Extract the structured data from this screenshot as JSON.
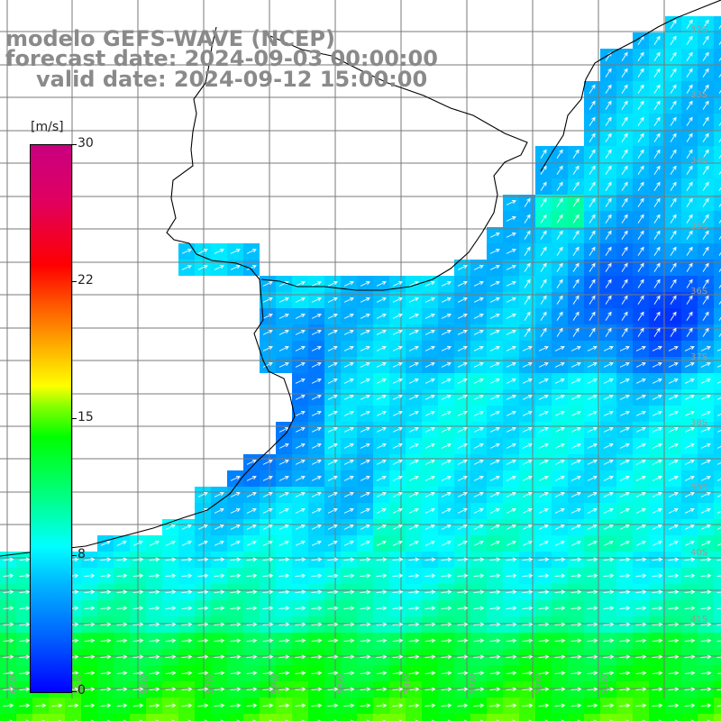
{
  "header": {
    "line1": "modelo GEFS-WAVE (NCEP)",
    "line2": "forecast date: 2024-09-03 00:00:00",
    "line3": "valid date: 2024-09-12 15:00:00"
  },
  "colorbar": {
    "unit": "[m/s]",
    "min": 0,
    "max": 30,
    "ticks": [
      "30",
      "22",
      "15",
      "8",
      "0"
    ],
    "tick_values": [
      30,
      22,
      15,
      8,
      0
    ]
  },
  "map": {
    "parameter_field": "wind speed",
    "lat_labels_right": [
      "32S",
      "33S",
      "34S",
      "35S",
      "36S",
      "37S",
      "38S",
      "39S",
      "40S",
      "41S"
    ],
    "lon_labels_bottom": [
      "60W",
      "59W",
      "58W",
      "57W",
      "56W",
      "55W",
      "54W",
      "53W",
      "52W",
      "51W"
    ],
    "colors": {
      "land": "#ffffff",
      "grid": "#7a7a7a",
      "coast": "#000000",
      "arrows": "#ffffff"
    }
  }
}
